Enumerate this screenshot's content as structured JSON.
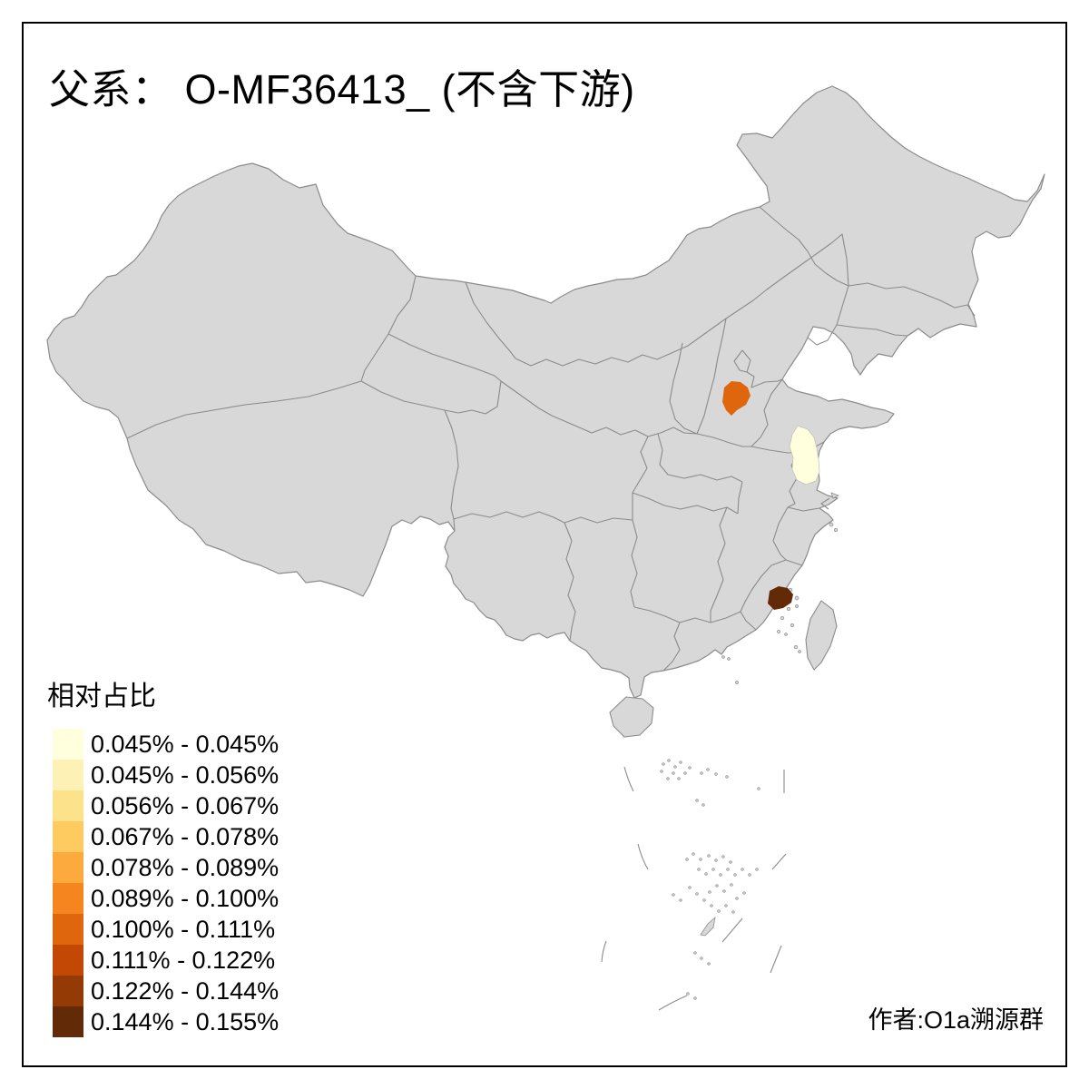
{
  "title": {
    "text": "父系： O-MF36413_ (不含下游)"
  },
  "legend": {
    "title": "相对占比",
    "classes": [
      {
        "label": "0.045% - 0.045%",
        "color": "#FFFFDE"
      },
      {
        "label": "0.045% - 0.056%",
        "color": "#FDF1B5"
      },
      {
        "label": "0.056% - 0.067%",
        "color": "#FDE28C"
      },
      {
        "label": "0.067% - 0.078%",
        "color": "#FDCB5F"
      },
      {
        "label": "0.078% - 0.089%",
        "color": "#FCA93E"
      },
      {
        "label": "0.089% - 0.100%",
        "color": "#F5861F"
      },
      {
        "label": "0.100% - 0.111%",
        "color": "#E0660E"
      },
      {
        "label": "0.111% - 0.122%",
        "color": "#C34705"
      },
      {
        "label": "0.122% - 0.144%",
        "color": "#943A05"
      },
      {
        "label": "0.144% - 0.155%",
        "color": "#632A08"
      }
    ]
  },
  "attribution": {
    "text": "作者:O1a溯源群"
  },
  "map": {
    "background_color": "#FFFFFF",
    "land_color": "#D8D8D8",
    "border_color": "#8B8B8B",
    "frame_color": "#000000",
    "highlighted_regions": [
      {
        "name": "hebei-area-region",
        "legend_class": "0.100% - 0.111%",
        "color": "#E0660E"
      },
      {
        "name": "jiangsu-coast-region",
        "legend_class": "0.045% - 0.045%",
        "color": "#FFFFDE"
      },
      {
        "name": "fujian-coast-region",
        "legend_class": "0.144% - 0.155%",
        "color": "#632A08"
      }
    ]
  }
}
